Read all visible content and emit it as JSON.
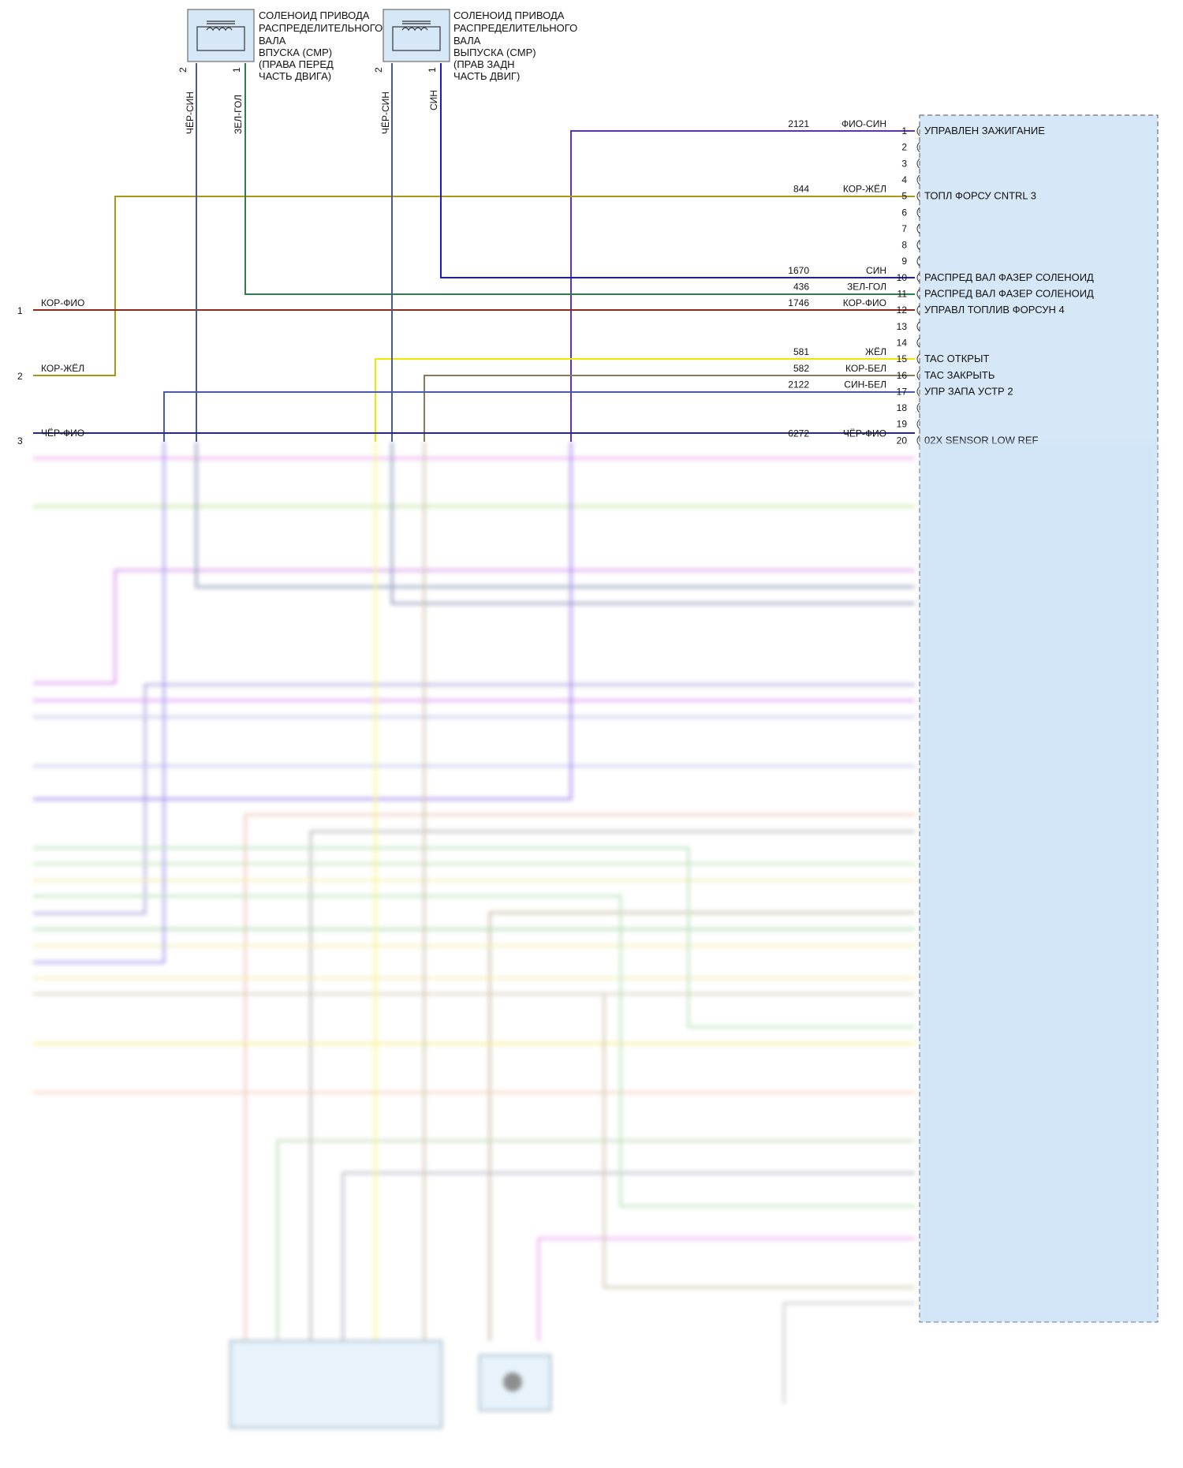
{
  "colors": {
    "module_fill": "#d6e8f8",
    "module_border": "#555555",
    "wire_violet": "#5a2fd0",
    "wire_olive": "#a89a10",
    "wire_blue": "#1a1ac8",
    "wire_green": "#2e7d4a",
    "wire_brown_red": "#8b2a1a",
    "wire_yellow": "#f0e600",
    "wire_tan": "#8a7a5a",
    "wire_gray_blue": "#4a5a8a",
    "wire_navy": "#27297a"
  },
  "solenoids": [
    {
      "id": "intake",
      "title": "СОЛЕНОИД ПРИВОДА РАСПРЕДЕЛИТЕЛЬНОГО ВАЛА ВПУСКА (CMP) (ПРАВА ПЕРЕД ЧАСТЬ ДВИГА)",
      "lines": [
        "СОЛЕНОИД ПРИВОДА",
        "РАСПРЕДЕЛИТЕЛЬНОГО",
        "ВАЛА",
        "ВПУСКА (CMP)",
        "(ПРАВА ПЕРЕД",
        "ЧАСТЬ ДВИГА)"
      ],
      "pins": [
        "2",
        "1"
      ],
      "wires": [
        "ЧЁР-СИН",
        "ЗЕЛ-ГОЛ"
      ]
    },
    {
      "id": "exhaust",
      "title": "СОЛЕНОИД ПРИВОДА РАСПРЕДЕЛИТЕЛЬНОГО ВАЛА ВЫПУСКА (CMP) (ПРАВ ЗАДН ЧАСТЬ ДВИГ)",
      "lines": [
        "СОЛЕНОИД ПРИВОДА",
        "РАСПРЕДЕЛИТЕЛЬНОГО",
        "ВАЛА",
        "ВЫПУСКА (CMP)",
        "(ПРАВ ЗАДН",
        "ЧАСТЬ ДВИГ)"
      ],
      "pins": [
        "2",
        "1"
      ],
      "wires": [
        "ЧЁР-СИН",
        "СИН"
      ]
    }
  ],
  "left_connectors": [
    {
      "pin": "1",
      "color": "КОР-ФИО"
    },
    {
      "pin": "2",
      "color": "КОР-ЖЁЛ"
    },
    {
      "pin": "3",
      "color": "ЧЁР-ФИО"
    }
  ],
  "module_rows": [
    {
      "pin": "1",
      "circuit": "2121",
      "color": "ФИО-СИН",
      "function": "УПРАВЛЕН ЗАЖИГАНИЕ"
    },
    {
      "pin": "2",
      "circuit": "",
      "color": "",
      "function": ""
    },
    {
      "pin": "3",
      "circuit": "",
      "color": "",
      "function": ""
    },
    {
      "pin": "4",
      "circuit": "",
      "color": "",
      "function": ""
    },
    {
      "pin": "5",
      "circuit": "844",
      "color": "КОР-ЖЁЛ",
      "function": "ТОПЛ ФОРСУ CNTRL 3"
    },
    {
      "pin": "6",
      "circuit": "",
      "color": "",
      "function": ""
    },
    {
      "pin": "7",
      "circuit": "",
      "color": "",
      "function": ""
    },
    {
      "pin": "8",
      "circuit": "",
      "color": "",
      "function": ""
    },
    {
      "pin": "9",
      "circuit": "",
      "color": "",
      "function": ""
    },
    {
      "pin": "10",
      "circuit": "1670",
      "color": "СИН",
      "function": "РАСПРЕД ВАЛ ФАЗЕР СОЛЕНОИД"
    },
    {
      "pin": "11",
      "circuit": "436",
      "color": "ЗЕЛ-ГОЛ",
      "function": "РАСПРЕД ВАЛ ФАЗЕР СОЛЕНОИД"
    },
    {
      "pin": "12",
      "circuit": "1746",
      "color": "КОР-ФИО",
      "function": "УПРАВЛ ТОПЛИВ ФОРСУН 4"
    },
    {
      "pin": "13",
      "circuit": "",
      "color": "",
      "function": ""
    },
    {
      "pin": "14",
      "circuit": "",
      "color": "",
      "function": ""
    },
    {
      "pin": "15",
      "circuit": "581",
      "color": "ЖЁЛ",
      "function": "TAC ОТКРЫТ"
    },
    {
      "pin": "16",
      "circuit": "582",
      "color": "КОР-БЕЛ",
      "function": "TAC ЗАКРЫТЬ"
    },
    {
      "pin": "17",
      "circuit": "2122",
      "color": "СИН-БЕЛ",
      "function": "УПР ЗАПА УСТР 2"
    },
    {
      "pin": "18",
      "circuit": "",
      "color": "",
      "function": ""
    },
    {
      "pin": "19",
      "circuit": "",
      "color": "",
      "function": ""
    },
    {
      "pin": "20",
      "circuit": "6272",
      "color": "ЧЁР-ФИО",
      "function": "02X SENSOR LOW REF"
    }
  ]
}
